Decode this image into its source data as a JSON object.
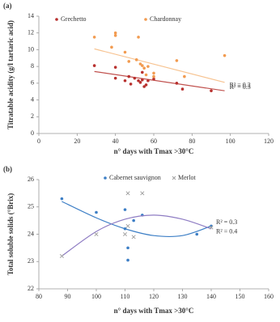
{
  "chart_data": [
    {
      "type": "scatter",
      "label": "(a)",
      "y_label": "Titratable acidity (g/l tartaric acid)",
      "x_label": "n° days with Tmax >30°C",
      "xlim": [
        0,
        120
      ],
      "xticks": [
        0,
        20,
        40,
        60,
        80,
        100,
        120
      ],
      "ylim": [
        0,
        14
      ],
      "yticks": [
        0,
        2,
        4,
        6,
        8,
        10,
        12,
        14
      ],
      "series": [
        {
          "name": "Grechetto",
          "color": "#b8312f",
          "marker": "circle",
          "trend_color": "#c0504d",
          "x": [
            29,
            40,
            40,
            45,
            47,
            48,
            50,
            52,
            53,
            54,
            54,
            55,
            56,
            57,
            60,
            72,
            75,
            90
          ],
          "y": [
            8.1,
            7.9,
            6.6,
            6.3,
            6.8,
            5.9,
            6.6,
            6.3,
            6.1,
            6.4,
            7.3,
            5.6,
            5.8,
            6.3,
            6.5,
            6.0,
            5.3,
            5.1
          ],
          "trend": {
            "x": [
              29,
              97
            ],
            "y": [
              7.4,
              5.1
            ]
          },
          "annotation": "R² = 0.3"
        },
        {
          "name": "Chardonnay",
          "color": "#f29b50",
          "marker": "circle",
          "trend_color": "#f7c391",
          "x": [
            29,
            38,
            40,
            40,
            45,
            47,
            51,
            52,
            53,
            54,
            55,
            56,
            57,
            60,
            60,
            72,
            76,
            97
          ],
          "y": [
            11.5,
            10.3,
            12.0,
            11.7,
            9.7,
            8.6,
            8.8,
            11.5,
            8.3,
            8.1,
            7.8,
            7.0,
            8.0,
            7.2,
            6.8,
            8.7,
            6.8,
            9.3
          ],
          "trend": {
            "x": [
              29,
              97
            ],
            "y": [
              10.1,
              6.1
            ]
          },
          "annotation": "R² = 0.2"
        }
      ]
    },
    {
      "type": "scatter",
      "label": "(b)",
      "y_label": "Total soluble solids (°Brix)",
      "x_label": "n° days with Tmax >30°C",
      "xlim": [
        80,
        160
      ],
      "xticks": [
        80,
        90,
        100,
        110,
        120,
        130,
        140,
        150,
        160
      ],
      "ylim": [
        22,
        26
      ],
      "yticks": [
        22,
        23,
        24,
        25,
        26
      ],
      "series": [
        {
          "name": "Cabernet sauvignon",
          "color": "#3d7fc6",
          "marker": "circle",
          "trend_color": "#3d7fc6",
          "x": [
            88,
            100,
            110,
            110,
            111,
            111,
            113,
            116,
            135,
            140
          ],
          "y": [
            25.3,
            24.8,
            24.9,
            24.2,
            23.5,
            23.05,
            24.5,
            24.7,
            24.0,
            24.3
          ],
          "trend": {
            "x": [
              88,
              100,
              110,
              120,
              130,
              140
            ],
            "y": [
              25.2,
              24.6,
              24.2,
              23.95,
              23.95,
              24.3
            ]
          },
          "annotation": "R² = 0.3"
        },
        {
          "name": "Merlot",
          "color": "#a0a0a0",
          "marker": "cross",
          "trend_color": "#8e7cc3",
          "x": [
            88,
            100,
            110,
            111,
            111,
            113,
            116,
            140
          ],
          "y": [
            23.2,
            24.0,
            24.0,
            25.5,
            24.3,
            23.9,
            25.5,
            24.25
          ],
          "trend": {
            "x": [
              88,
              100,
              110,
              120,
              130,
              140
            ],
            "y": [
              23.2,
              24.1,
              24.55,
              24.7,
              24.55,
              24.2
            ]
          },
          "annotation": "R² = 0.4"
        }
      ]
    }
  ]
}
